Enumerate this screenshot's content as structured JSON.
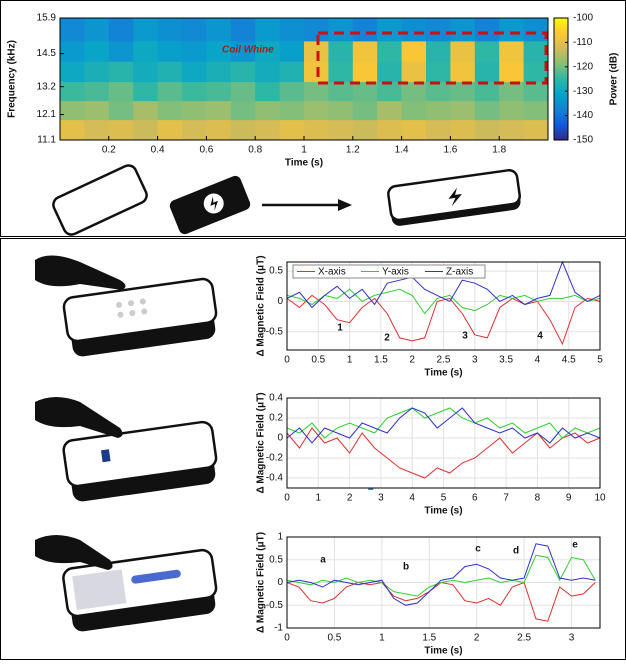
{
  "chart_data": [
    {
      "type": "heatmap",
      "ylabel": "Frequency (kHz)",
      "xlabel": "Time (s)",
      "colorbar_label": "Power (dB)",
      "annotations": [
        "Coil Whine"
      ],
      "x": [
        0.05,
        0.15,
        0.25,
        0.35,
        0.45,
        0.55,
        0.65,
        0.75,
        0.85,
        0.95,
        1.05,
        1.15,
        1.25,
        1.35,
        1.45,
        1.55,
        1.65,
        1.75,
        1.85,
        1.95
      ],
      "y": [
        11.5,
        12.3,
        13.0,
        13.8,
        14.6,
        15.4
      ],
      "values": [
        [
          -110,
          -112,
          -111,
          -113,
          -110,
          -112,
          -111,
          -113,
          -112,
          -110,
          -111,
          -112,
          -113,
          -111,
          -110,
          -112,
          -111,
          -113,
          -112,
          -111
        ],
        [
          -118,
          -117,
          -120,
          -116,
          -119,
          -118,
          -117,
          -120,
          -118,
          -119,
          -117,
          -118,
          -120,
          -116,
          -119,
          -118,
          -117,
          -120,
          -118,
          -119
        ],
        [
          -124,
          -123,
          -121,
          -125,
          -122,
          -124,
          -123,
          -121,
          -125,
          -122,
          -120,
          -122,
          -121,
          -123,
          -120,
          -122,
          -121,
          -123,
          -120,
          -122
        ],
        [
          -130,
          -128,
          -126,
          -129,
          -127,
          -130,
          -128,
          -126,
          -129,
          -127,
          -108,
          -125,
          -107,
          -126,
          -109,
          -125,
          -108,
          -126,
          -107,
          -125
        ],
        [
          -133,
          -131,
          -134,
          -130,
          -132,
          -133,
          -131,
          -134,
          -130,
          -132,
          -109,
          -126,
          -108,
          -125,
          -107,
          -126,
          -109,
          -125,
          -108,
          -126
        ],
        [
          -136,
          -134,
          -137,
          -133,
          -135,
          -136,
          -134,
          -137,
          -133,
          -135,
          -136,
          -134,
          -137,
          -133,
          -135,
          -136,
          -134,
          -137,
          -133,
          -135
        ]
      ],
      "xlim": [
        0,
        2
      ],
      "xticks": [
        0.2,
        0.4,
        0.6,
        0.8,
        1,
        1.2,
        1.4,
        1.6,
        1.8
      ],
      "ylim": [
        11.1,
        15.9
      ],
      "yticks": [
        11.1,
        12.1,
        13.2,
        14.5,
        15.9
      ],
      "zlim": [
        -150,
        -100
      ],
      "zticks": [
        -100,
        -110,
        -120,
        -130,
        -140,
        -150
      ],
      "colormap": [
        "#352a87",
        "#0f5cdd",
        "#1481d6",
        "#06a4ca",
        "#2eb7a4",
        "#87bf77",
        "#d1bb59",
        "#fec832",
        "#f9fb0e"
      ]
    },
    {
      "type": "line",
      "ylabel": "Δ Magnetic Field (μT)",
      "xlabel": "Time (s)",
      "legend": "upper left",
      "grid": true,
      "annotations": [
        "1",
        "2",
        "3",
        "4"
      ],
      "x": [
        0,
        0.2,
        0.4,
        0.6,
        0.8,
        1.0,
        1.2,
        1.4,
        1.6,
        1.8,
        2.0,
        2.2,
        2.4,
        2.6,
        2.8,
        3.0,
        3.2,
        3.4,
        3.6,
        3.8,
        4.0,
        4.2,
        4.4,
        4.6,
        4.8,
        5.0
      ],
      "series": [
        {
          "name": "X-axis",
          "color": "#e03030",
          "values": [
            0.05,
            -0.1,
            0.1,
            -0.05,
            -0.3,
            -0.35,
            -0.1,
            0.05,
            -0.2,
            -0.6,
            -0.65,
            -0.6,
            0.0,
            0.05,
            -0.2,
            -0.55,
            -0.6,
            -0.1,
            0.05,
            -0.05,
            0.0,
            -0.3,
            -0.7,
            -0.1,
            0.05,
            0.0
          ]
        },
        {
          "name": "Y-axis",
          "color": "#30d030",
          "values": [
            0.1,
            0.05,
            -0.05,
            0.1,
            0.05,
            0.2,
            0.0,
            0.1,
            0.15,
            0.2,
            0.1,
            -0.2,
            0.05,
            0.1,
            -0.1,
            -0.15,
            -0.05,
            0.1,
            0.05,
            0.1,
            0.0,
            0.05,
            0.05,
            0.1,
            0.0,
            0.05
          ]
        },
        {
          "name": "Z-axis",
          "color": "#3030d0",
          "values": [
            0.05,
            0.15,
            -0.1,
            0.1,
            0.25,
            0.05,
            0.2,
            -0.05,
            0.3,
            0.35,
            0.4,
            0.2,
            0.1,
            0.0,
            0.35,
            0.3,
            0.2,
            0.0,
            0.1,
            -0.05,
            0.05,
            0.1,
            0.65,
            0.15,
            0.0,
            0.1
          ]
        }
      ],
      "xlim": [
        0,
        5
      ],
      "xticks": [
        0,
        0.5,
        1,
        1.5,
        2,
        2.5,
        3,
        3.5,
        4,
        4.5,
        5
      ],
      "ylim": [
        -0.8,
        0.65
      ],
      "yticks": [
        -0.5,
        0,
        0.5
      ]
    },
    {
      "type": "line",
      "ylabel": "Δ Magnetic Field (μT)",
      "xlabel": "Time (s)",
      "grid": true,
      "x": [
        0,
        0.4,
        0.8,
        1.2,
        1.6,
        2.0,
        2.4,
        2.8,
        3.2,
        3.6,
        4.0,
        4.4,
        4.8,
        5.2,
        5.6,
        6.0,
        6.4,
        6.8,
        7.2,
        7.6,
        8.0,
        8.4,
        8.8,
        9.2,
        9.6,
        10
      ],
      "series": [
        {
          "color": "#e03030",
          "values": [
            0.05,
            -0.1,
            0.1,
            -0.05,
            0.0,
            -0.15,
            0.05,
            -0.1,
            -0.2,
            -0.3,
            -0.35,
            -0.4,
            -0.3,
            -0.35,
            -0.25,
            -0.2,
            -0.1,
            0.0,
            -0.15,
            -0.05,
            0.05,
            -0.1,
            0.0,
            0.05,
            -0.05,
            0.0
          ]
        },
        {
          "color": "#30d030",
          "values": [
            0.1,
            0.05,
            0.15,
            0.0,
            0.1,
            0.15,
            0.1,
            0.05,
            0.2,
            0.25,
            0.3,
            0.2,
            0.25,
            0.3,
            0.2,
            0.15,
            0.2,
            0.1,
            0.15,
            0.05,
            0.1,
            0.15,
            0.0,
            0.1,
            0.05,
            0.1
          ]
        },
        {
          "color": "#3030d0",
          "values": [
            0.0,
            0.1,
            -0.05,
            0.1,
            0.05,
            0.0,
            0.15,
            0.1,
            0.05,
            0.2,
            0.3,
            0.25,
            0.1,
            0.2,
            0.3,
            0.15,
            0.1,
            0.05,
            0.1,
            0.0,
            0.05,
            -0.05,
            0.1,
            0.0,
            0.05,
            0.0
          ]
        }
      ],
      "xlim": [
        0,
        10
      ],
      "xticks": [
        0,
        1,
        2,
        3,
        4,
        5,
        6,
        7,
        8,
        9,
        10
      ],
      "ylim": [
        -0.5,
        0.4
      ],
      "yticks": [
        -0.4,
        -0.2,
        0,
        0.2,
        0.4
      ]
    },
    {
      "type": "line",
      "ylabel": "Δ Magnetic Field (μT)",
      "xlabel": "Time (s)",
      "grid": true,
      "annotations": [
        "a",
        "b",
        "c",
        "d",
        "e"
      ],
      "x": [
        0,
        0.125,
        0.25,
        0.375,
        0.5,
        0.625,
        0.75,
        0.875,
        1,
        1.125,
        1.25,
        1.375,
        1.5,
        1.625,
        1.75,
        1.875,
        2,
        2.125,
        2.25,
        2.375,
        2.5,
        2.625,
        2.75,
        2.875,
        3,
        3.125,
        3.25
      ],
      "series": [
        {
          "color": "#e03030",
          "values": [
            0,
            -0.1,
            -0.4,
            -0.45,
            -0.35,
            -0.1,
            0,
            -0.05,
            0,
            -0.3,
            -0.4,
            -0.35,
            -0.2,
            0,
            -0.05,
            -0.4,
            -0.45,
            -0.35,
            -0.5,
            -0.1,
            0,
            -0.8,
            -0.85,
            -0.1,
            -0.3,
            -0.25,
            0
          ]
        },
        {
          "color": "#30d030",
          "values": [
            0.05,
            0,
            -0.05,
            0.05,
            0,
            0.1,
            0,
            0.05,
            0,
            -0.2,
            -0.25,
            -0.3,
            -0.1,
            0,
            0.05,
            0,
            0.05,
            0.1,
            0,
            0.05,
            0,
            0.6,
            0.55,
            0.05,
            0.55,
            0.5,
            0.05
          ]
        },
        {
          "color": "#3030d0",
          "values": [
            0,
            0.05,
            0,
            -0.1,
            0.05,
            0,
            -0.05,
            0,
            0.05,
            -0.35,
            -0.5,
            -0.45,
            -0.2,
            0.05,
            0.1,
            0.35,
            0.4,
            0.3,
            0.1,
            0.05,
            0.1,
            0.85,
            0.8,
            0.1,
            0.05,
            0.1,
            0.05
          ]
        }
      ],
      "xlim": [
        0,
        3.3
      ],
      "xticks": [
        0,
        0.5,
        1,
        1.5,
        2,
        2.5,
        3
      ],
      "ylim": [
        -1,
        1
      ],
      "yticks": [
        -1,
        -0.5,
        0,
        0.5,
        1
      ]
    }
  ]
}
